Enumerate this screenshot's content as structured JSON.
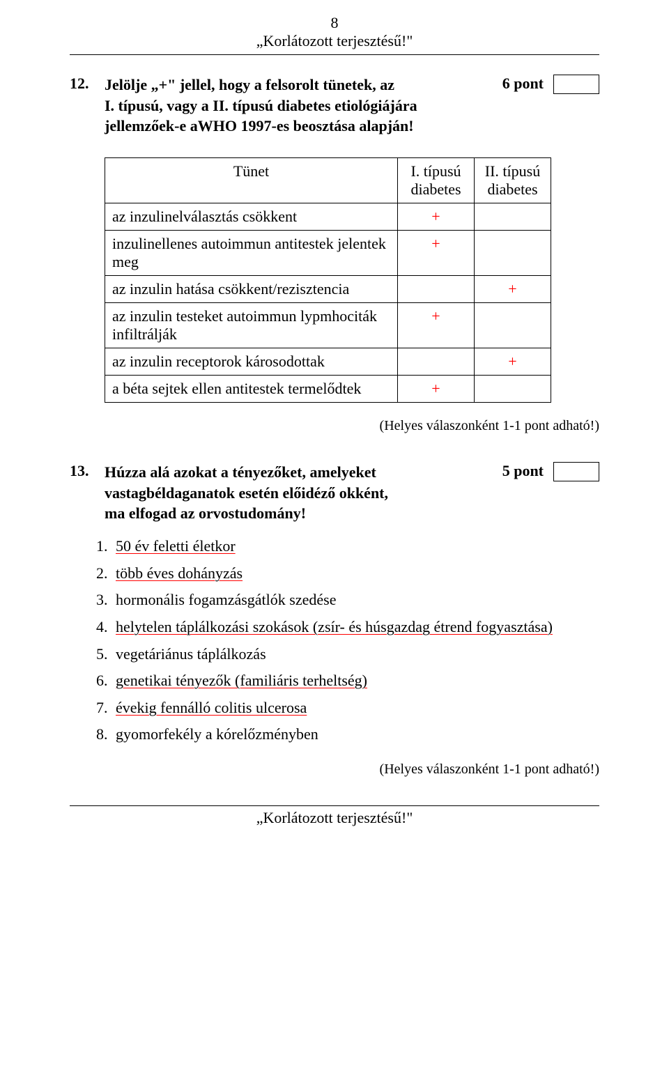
{
  "header": {
    "page_number": "8",
    "title": "„Korlátozott terjesztésű!\""
  },
  "q12": {
    "number": "12.",
    "text_line1": "Jelölje „+\" jellel, hogy a felsorolt tünetek, az",
    "text_line2": "I. típusú, vagy a II. típusú diabetes etiológiájára",
    "text_line3": "jellemzőek-e aWHO 1997-es beosztása alapján!",
    "points": "6 pont",
    "table": {
      "head_sym": "Tünet",
      "head_col1_a": "I. típusú",
      "head_col1_b": "diabetes",
      "head_col2_a": "II. típusú",
      "head_col2_b": "diabetes",
      "rows": [
        {
          "sym": "az inzulinelválasztás csökkent",
          "c1": "+",
          "c2": ""
        },
        {
          "sym": "inzulinellenes autoimmun antitestek jelentek\nmeg",
          "c1": "+",
          "c2": ""
        },
        {
          "sym": "az inzulin hatása csökkent/rezisztencia",
          "c1": "",
          "c2": "+"
        },
        {
          "sym": "az inzulin testeket autoimmun lypmhociták\ninfiltrálják",
          "c1": "+",
          "c2": ""
        },
        {
          "sym": "az inzulin receptorok károsodottak",
          "c1": "",
          "c2": "+"
        },
        {
          "sym": "a béta sejtek ellen antitestek termelődtek",
          "c1": "+",
          "c2": ""
        }
      ]
    },
    "note": "(Helyes válaszonként 1-1 pont adható!)"
  },
  "q13": {
    "number": "13.",
    "text_line1": "Húzza alá azokat a tényezőket, amelyeket",
    "text_line2": "vastagbéldaganatok esetén előidéző okként,",
    "text_line3": "ma elfogad az orvostudomány!",
    "points": "5 pont",
    "answers": [
      {
        "text": "50 év feletti életkor",
        "underlined": true
      },
      {
        "text": "több éves dohányzás",
        "underlined": true
      },
      {
        "text": "hormonális fogamzásgátlók szedése",
        "underlined": false
      },
      {
        "text": "helytelen táplálkozási szokások (zsír- és húsgazdag étrend fogyasztása)",
        "underlined": true
      },
      {
        "text": "vegetáriánus táplálkozás",
        "underlined": false
      },
      {
        "text": "genetikai tényezők (familiáris terheltség)",
        "underlined": true
      },
      {
        "text": "évekig fennálló colitis ulcerosa",
        "underlined": true
      },
      {
        "text": "gyomorfekély a kórelőzményben",
        "underlined": false
      }
    ],
    "note": "(Helyes válaszonként 1-1 pont adható!)"
  },
  "footer": {
    "title": "„Korlátozott terjesztésű!\""
  },
  "colors": {
    "text": "#000000",
    "background": "#ffffff",
    "accent_red": "#ff0000"
  }
}
